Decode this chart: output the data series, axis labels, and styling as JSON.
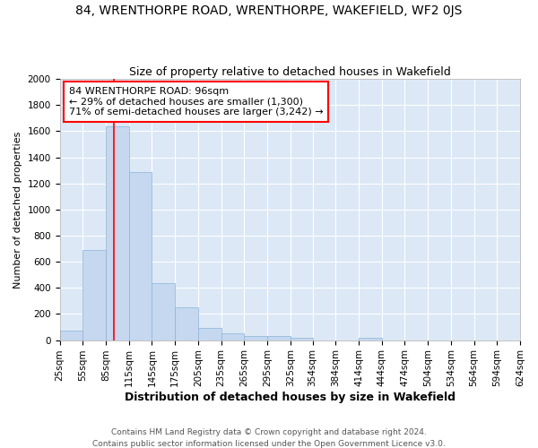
{
  "title": "84, WRENTHORPE ROAD, WRENTHORPE, WAKEFIELD, WF2 0JS",
  "subtitle": "Size of property relative to detached houses in Wakefield",
  "xlabel": "Distribution of detached houses by size in Wakefield",
  "ylabel": "Number of detached properties",
  "bin_labels": [
    "25sqm",
    "55sqm",
    "85sqm",
    "115sqm",
    "145sqm",
    "175sqm",
    "205sqm",
    "235sqm",
    "265sqm",
    "295sqm",
    "325sqm",
    "354sqm",
    "384sqm",
    "414sqm",
    "444sqm",
    "474sqm",
    "504sqm",
    "534sqm",
    "564sqm",
    "594sqm",
    "624sqm"
  ],
  "bin_edges": [
    25,
    55,
    85,
    115,
    145,
    175,
    205,
    235,
    265,
    295,
    325,
    354,
    384,
    414,
    444,
    474,
    504,
    534,
    564,
    594,
    624
  ],
  "bar_heights": [
    70,
    690,
    1640,
    1290,
    435,
    250,
    90,
    55,
    30,
    30,
    15,
    0,
    0,
    15,
    0,
    0,
    0,
    0,
    0,
    0
  ],
  "bar_color": "#c5d8f0",
  "bar_edge_color": "#8ab4d8",
  "background_color": "#dce8f5",
  "red_line_x": 96,
  "annotation_text": "84 WRENTHORPE ROAD: 96sqm\n← 29% of detached houses are smaller (1,300)\n71% of semi-detached houses are larger (3,242) →",
  "ylim": [
    0,
    2000
  ],
  "yticks": [
    0,
    200,
    400,
    600,
    800,
    1000,
    1200,
    1400,
    1600,
    1800,
    2000
  ],
  "footer": "Contains HM Land Registry data © Crown copyright and database right 2024.\nContains public sector information licensed under the Open Government Licence v3.0.",
  "title_fontsize": 10,
  "subtitle_fontsize": 9,
  "ylabel_fontsize": 8,
  "xlabel_fontsize": 9,
  "tick_fontsize": 7.5,
  "annotation_fontsize": 8,
  "footer_fontsize": 6.5
}
